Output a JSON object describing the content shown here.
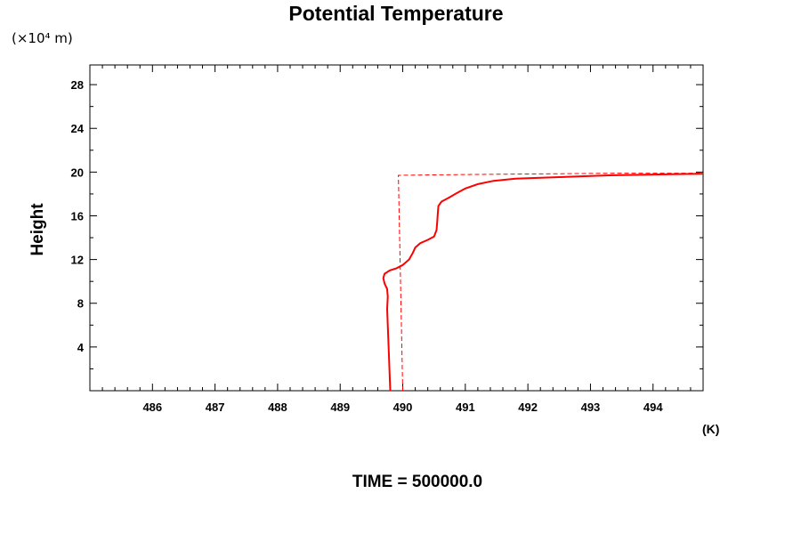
{
  "chart_data": {
    "type": "line",
    "title": "Potential Temperature",
    "ylabel": "Height",
    "y_unit": "(×10⁴ m)",
    "x_unit": "(K)",
    "footer": "TIME = 500000.0",
    "xlim": [
      485.0,
      494.8
    ],
    "ylim": [
      0,
      29.8
    ],
    "xticks_major": [
      486,
      487,
      488,
      489,
      490,
      491,
      492,
      493,
      494
    ],
    "yticks_major": [
      4,
      8,
      12,
      16,
      20,
      24,
      28
    ],
    "grid": false,
    "legend": "none",
    "series": [
      {
        "style": "solid",
        "color": "#ff0000",
        "points": [
          [
            489.8,
            0.0
          ],
          [
            489.79,
            1.5
          ],
          [
            489.78,
            3.0
          ],
          [
            489.77,
            4.5
          ],
          [
            489.76,
            6.0
          ],
          [
            489.75,
            7.5
          ],
          [
            489.76,
            8.6
          ],
          [
            489.75,
            9.3
          ],
          [
            489.71,
            9.8
          ],
          [
            489.69,
            10.3
          ],
          [
            489.71,
            10.7
          ],
          [
            489.79,
            11.0
          ],
          [
            489.9,
            11.2
          ],
          [
            490.0,
            11.5
          ],
          [
            490.1,
            12.0
          ],
          [
            490.16,
            12.6
          ],
          [
            490.2,
            13.1
          ],
          [
            490.28,
            13.5
          ],
          [
            490.4,
            13.8
          ],
          [
            490.5,
            14.1
          ],
          [
            490.54,
            14.7
          ],
          [
            490.55,
            15.4
          ],
          [
            490.56,
            16.2
          ],
          [
            490.57,
            16.9
          ],
          [
            490.62,
            17.3
          ],
          [
            490.72,
            17.6
          ],
          [
            490.84,
            18.0
          ],
          [
            491.0,
            18.5
          ],
          [
            491.2,
            18.9
          ],
          [
            491.45,
            19.2
          ],
          [
            491.8,
            19.4
          ],
          [
            492.3,
            19.5
          ],
          [
            492.8,
            19.6
          ],
          [
            493.3,
            19.7
          ],
          [
            493.8,
            19.75
          ],
          [
            494.3,
            19.8
          ],
          [
            494.8,
            19.85
          ]
        ]
      },
      {
        "style": "dashed",
        "color": "#ff0000",
        "points": [
          [
            490.0,
            0.0
          ],
          [
            489.93,
            19.7
          ],
          [
            490.6,
            19.75
          ],
          [
            491.5,
            19.8
          ],
          [
            492.5,
            19.85
          ],
          [
            493.5,
            19.9
          ],
          [
            494.8,
            19.9
          ]
        ]
      }
    ]
  }
}
